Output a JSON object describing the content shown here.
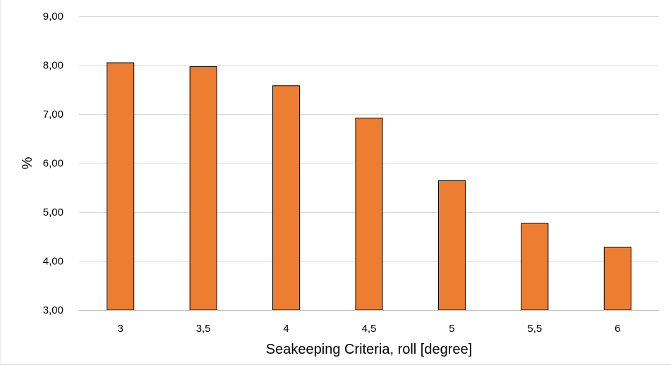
{
  "chart_data": {
    "type": "bar",
    "categories": [
      "3",
      "3,5",
      "4",
      "4,5",
      "5",
      "5,5",
      "6"
    ],
    "values": [
      8.05,
      7.97,
      7.58,
      6.92,
      5.64,
      4.77,
      4.28
    ],
    "xlabel": "Seakeeping Criteria, roll [degree]",
    "ylabel": "%",
    "ylim": [
      3,
      9
    ],
    "yticks": [
      3,
      4,
      5,
      6,
      7,
      8,
      9
    ],
    "ytick_labels": [
      "3,00",
      "4,00",
      "5,00",
      "6,00",
      "7,00",
      "8,00",
      "9,00"
    ],
    "grid": true,
    "legend": "none",
    "bar_color": "#ED7D31",
    "bar_edge_color": "#000000"
  }
}
